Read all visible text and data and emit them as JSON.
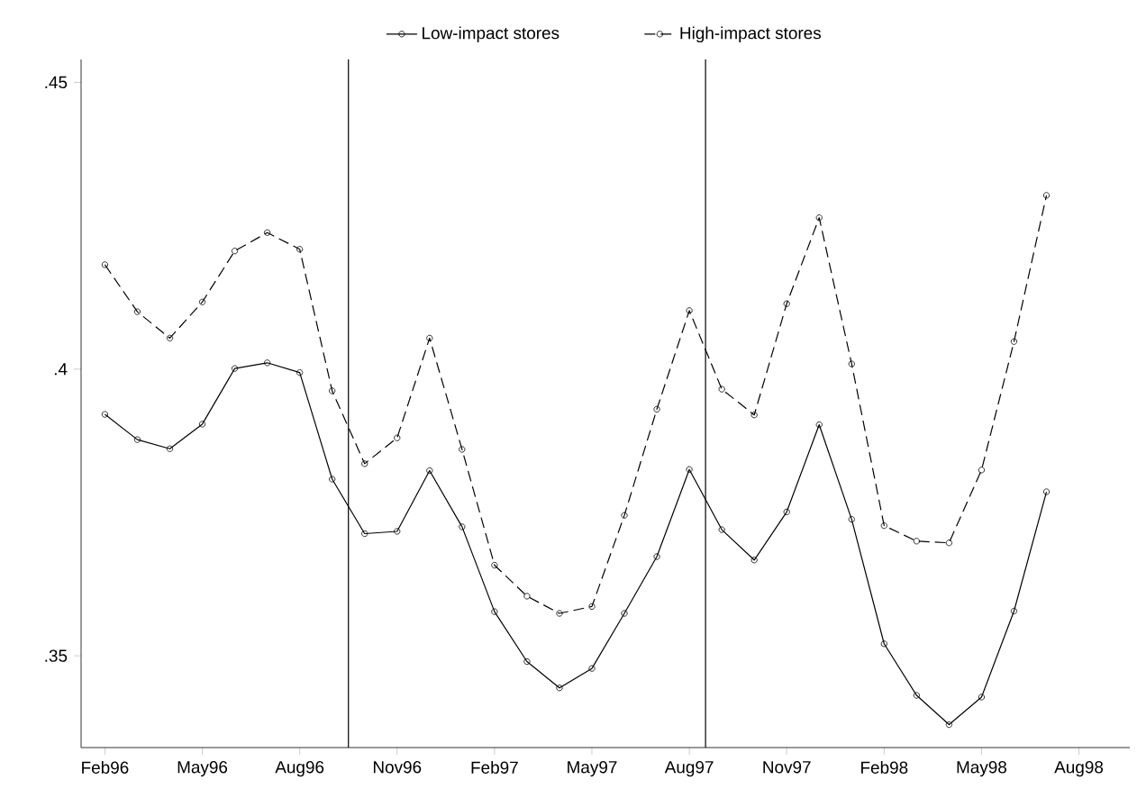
{
  "chart_data": {
    "type": "line",
    "x": [
      "1996-02",
      "1996-03",
      "1996-04",
      "1996-05",
      "1996-06",
      "1996-07",
      "1996-08",
      "1996-09",
      "1996-10",
      "1996-11",
      "1996-12",
      "1997-01",
      "1997-02",
      "1997-03",
      "1997-04",
      "1997-05",
      "1997-06",
      "1997-07",
      "1997-08",
      "1997-09",
      "1997-10",
      "1997-11",
      "1997-12",
      "1998-01",
      "1998-02",
      "1998-03",
      "1998-04",
      "1998-05",
      "1998-06",
      "1998-07"
    ],
    "series": [
      {
        "name": "Low-impact stores",
        "color": "#000000",
        "line_style": "solid",
        "values": [
          0.3921,
          0.3877,
          0.3861,
          0.3904,
          0.4001,
          0.4011,
          0.3994,
          0.3808,
          0.3713,
          0.3717,
          0.3823,
          0.3725,
          0.3577,
          0.349,
          0.3444,
          0.3478,
          0.3574,
          0.3673,
          0.3825,
          0.372,
          0.3667,
          0.3751,
          0.3903,
          0.3738,
          0.3521,
          0.3431,
          0.338,
          0.3428,
          0.3578,
          0.3786
        ]
      },
      {
        "name": "High-impact stores",
        "color": "#000000",
        "line_style": "dashed",
        "values": [
          0.4182,
          0.41,
          0.4054,
          0.4117,
          0.4206,
          0.4238,
          0.4209,
          0.3962,
          0.3835,
          0.388,
          0.4054,
          0.386,
          0.3658,
          0.3604,
          0.3574,
          0.3586,
          0.3745,
          0.393,
          0.4102,
          0.3965,
          0.392,
          0.4114,
          0.4264,
          0.4009,
          0.3727,
          0.37,
          0.3697,
          0.3824,
          0.4048,
          0.4303
        ]
      }
    ],
    "xlim": [
      "1996-01-09",
      "1998-09-18"
    ],
    "xticks": [
      {
        "value": "1996-02",
        "label": "Feb96"
      },
      {
        "value": "1996-05",
        "label": "May96"
      },
      {
        "value": "1996-08",
        "label": "Aug96"
      },
      {
        "value": "1996-11",
        "label": "Nov96"
      },
      {
        "value": "1997-02",
        "label": "Feb97"
      },
      {
        "value": "1997-05",
        "label": "May97"
      },
      {
        "value": "1997-08",
        "label": "Aug97"
      },
      {
        "value": "1997-11",
        "label": "Nov97"
      },
      {
        "value": "1998-02",
        "label": "Feb98"
      },
      {
        "value": "1998-05",
        "label": "May98"
      },
      {
        "value": "1998-08",
        "label": "Aug98"
      }
    ],
    "ylim": [
      0.334,
      0.454
    ],
    "yticks": [
      {
        "value": 0.35,
        "label": ".35"
      },
      {
        "value": 0.4,
        "label": ".4"
      },
      {
        "value": 0.45,
        "label": ".45"
      }
    ],
    "ref_lines": [
      {
        "axis": "x",
        "value": "1996-09-16",
        "color": "#000000"
      },
      {
        "axis": "x",
        "value": "1997-08-16",
        "color": "#000000"
      }
    ],
    "marker": "circle",
    "legend": "top",
    "grid": false
  }
}
